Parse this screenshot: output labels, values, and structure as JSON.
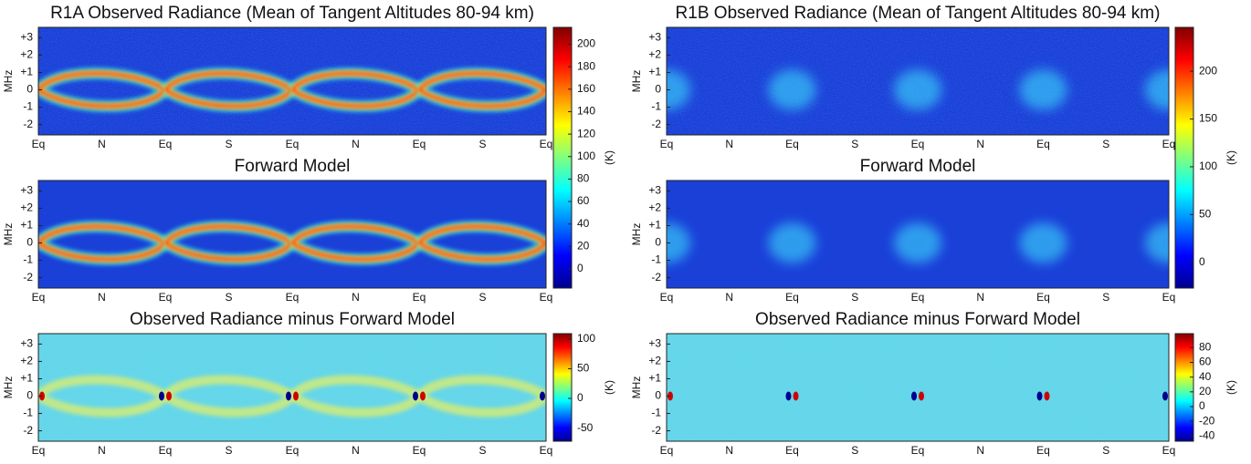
{
  "chart_data": [
    {
      "type": "heatmap",
      "title": "R1A Observed Radiance (Mean of Tangent Altitudes 80-94 km)",
      "ylabel": "MHz",
      "categories": [
        "Eq",
        "N",
        "Eq",
        "S",
        "Eq",
        "N",
        "Eq",
        "S",
        "Eq"
      ],
      "ylim": [
        -2.6,
        3.6
      ],
      "yticks": [
        -2,
        -1,
        0,
        {
          "value": 1,
          "label": "+1"
        },
        {
          "value": 2,
          "label": "+2"
        },
        {
          "value": 3,
          "label": "+3"
        }
      ],
      "colorbar": {
        "lim": [
          -17,
          215
        ],
        "ticks": [
          0,
          20,
          40,
          60,
          80,
          100,
          120,
          140,
          160,
          180,
          200
        ],
        "label": "(K)"
      }
    },
    {
      "type": "heatmap",
      "title": "Forward Model",
      "ylabel": "MHz",
      "categories": [
        "Eq",
        "N",
        "Eq",
        "S",
        "Eq",
        "N",
        "Eq",
        "S",
        "Eq"
      ],
      "ylim": [
        -2.6,
        3.6
      ],
      "yticks": [
        -2,
        -1,
        0,
        {
          "value": 1,
          "label": "+1"
        },
        {
          "value": 2,
          "label": "+2"
        },
        {
          "value": 3,
          "label": "+3"
        }
      ]
    },
    {
      "type": "heatmap",
      "title": "Observed Radiance minus Forward Model",
      "ylabel": "MHz",
      "categories": [
        "Eq",
        "N",
        "Eq",
        "S",
        "Eq",
        "N",
        "Eq",
        "S",
        "Eq"
      ],
      "ylim": [
        -2.6,
        3.6
      ],
      "yticks": [
        -2,
        -1,
        0,
        {
          "value": 1,
          "label": "+1"
        },
        {
          "value": 2,
          "label": "+2"
        },
        {
          "value": 3,
          "label": "+3"
        }
      ],
      "colorbar": {
        "lim": [
          -72,
          109
        ],
        "ticks": [
          -50,
          0,
          50,
          100
        ],
        "label": "(K)"
      }
    },
    {
      "type": "heatmap",
      "title": "R1B Observed Radiance (Mean of Tangent Altitudes 80-94 km)",
      "ylabel": "MHz",
      "categories": [
        "Eq",
        "N",
        "Eq",
        "S",
        "Eq",
        "N",
        "Eq",
        "S",
        "Eq"
      ],
      "ylim": [
        -2.6,
        3.6
      ],
      "yticks": [
        -2,
        -1,
        0,
        {
          "value": 1,
          "label": "+1"
        },
        {
          "value": 2,
          "label": "+2"
        },
        {
          "value": 3,
          "label": "+3"
        }
      ],
      "colorbar": {
        "lim": [
          -27,
          246
        ],
        "ticks": [
          0,
          50,
          100,
          150,
          200
        ],
        "label": "(K)"
      }
    },
    {
      "type": "heatmap",
      "title": "Forward Model",
      "ylabel": "MHz",
      "categories": [
        "Eq",
        "N",
        "Eq",
        "S",
        "Eq",
        "N",
        "Eq",
        "S",
        "Eq"
      ],
      "ylim": [
        -2.6,
        3.6
      ],
      "yticks": [
        -2,
        -1,
        0,
        {
          "value": 1,
          "label": "+1"
        },
        {
          "value": 2,
          "label": "+2"
        },
        {
          "value": 3,
          "label": "+3"
        }
      ]
    },
    {
      "type": "heatmap",
      "title": "Observed Radiance minus Forward Model",
      "ylabel": "MHz",
      "categories": [
        "Eq",
        "N",
        "Eq",
        "S",
        "Eq",
        "N",
        "Eq",
        "S",
        "Eq"
      ],
      "ylim": [
        -2.6,
        3.6
      ],
      "yticks": [
        -2,
        -1,
        0,
        {
          "value": 1,
          "label": "+1"
        },
        {
          "value": 2,
          "label": "+2"
        },
        {
          "value": 3,
          "label": "+3"
        }
      ],
      "colorbar": {
        "lim": [
          -47,
          99
        ],
        "ticks": [
          -40,
          -20,
          0,
          20,
          40,
          60,
          80
        ],
        "label": "(K)"
      }
    }
  ]
}
